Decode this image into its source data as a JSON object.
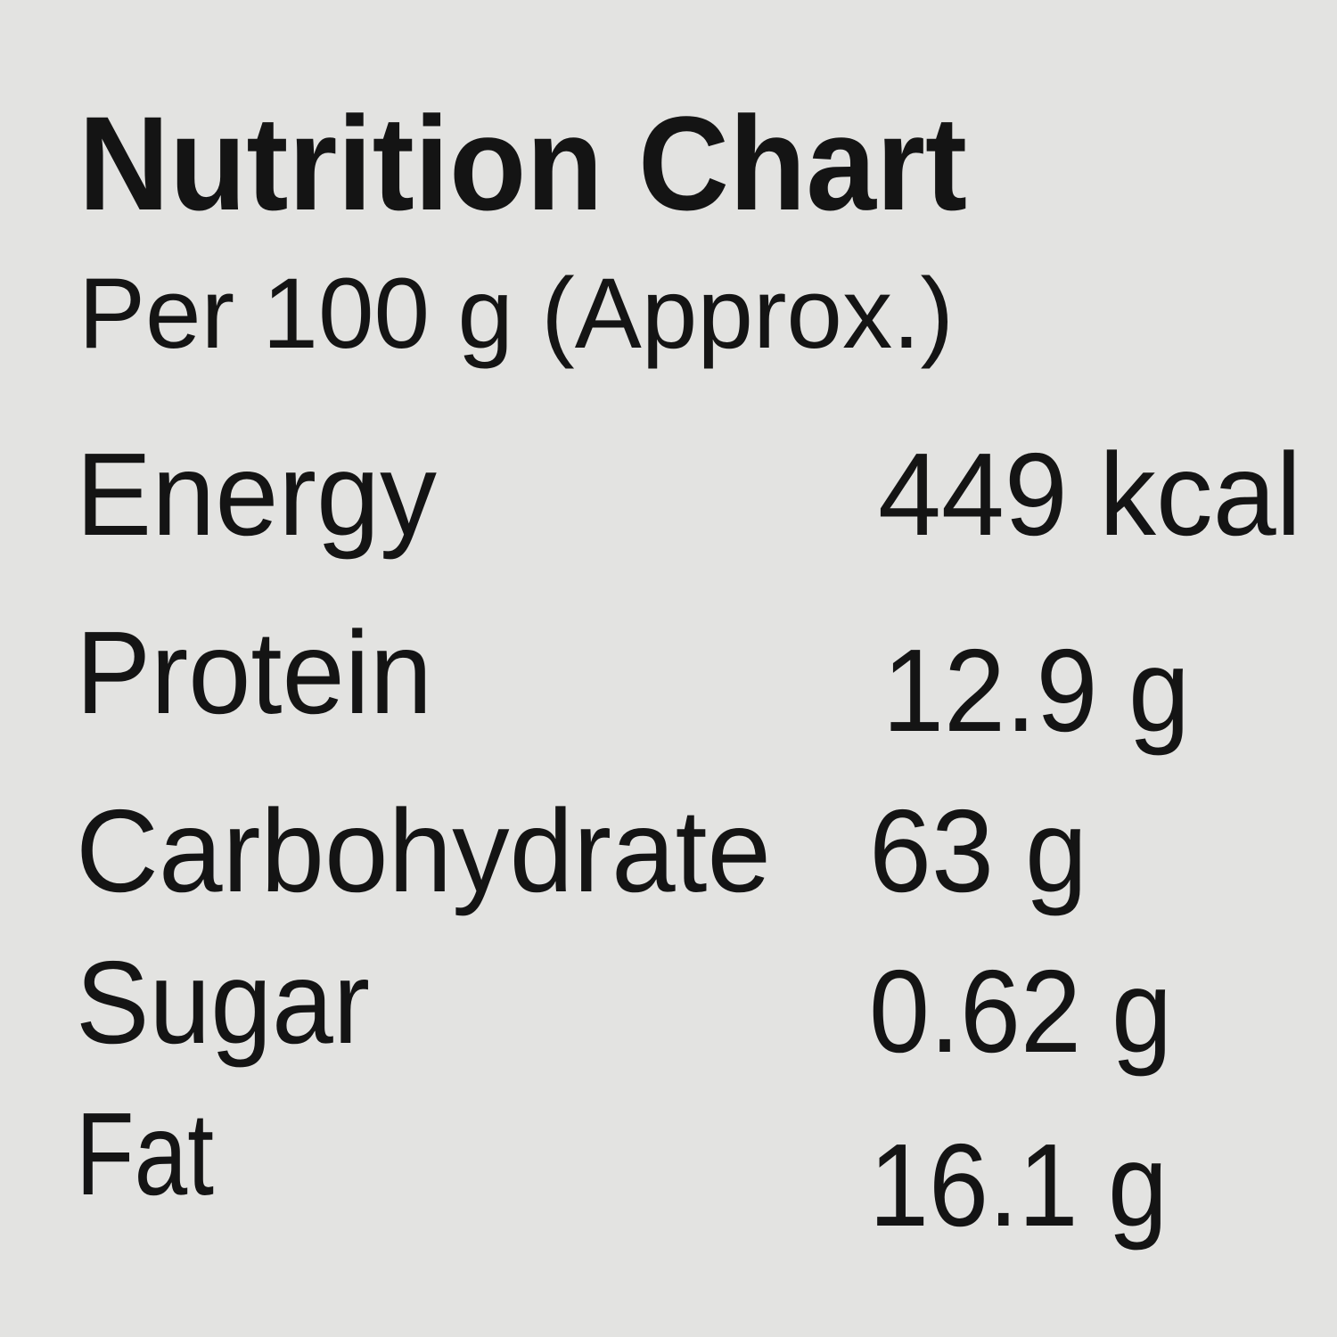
{
  "header": {
    "title": "Nutrition Chart",
    "subtitle": "Per 100 g (Approx.)"
  },
  "table": {
    "rows": [
      [
        "Energy",
        "449 kcal"
      ],
      [
        "Protein",
        "12.9 g"
      ],
      [
        "Carbohydrate",
        "63 g"
      ],
      [
        "Sugar",
        "0.62 g"
      ],
      [
        "Fat",
        "16.1 g"
      ]
    ]
  }
}
